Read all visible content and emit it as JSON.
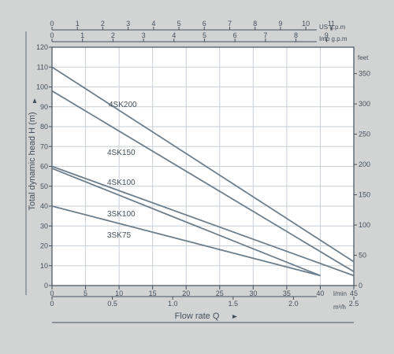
{
  "colors": {
    "page_bg": "#d2d4d3",
    "plot_bg": "#ffffff",
    "ink": "#44505c",
    "grid": "#c8cfd6",
    "series_line": "#6d7f8c"
  },
  "chart_data": {
    "type": "line",
    "title": "",
    "xlabel": "Flow rate Q",
    "ylabel": "Total dynamic head H (m)",
    "x_unit": "l/min",
    "xlim": [
      0,
      45
    ],
    "ylim": [
      0,
      120
    ],
    "grid": true,
    "x_ticks": [
      "0",
      "5",
      "10",
      "15",
      "20",
      "25",
      "30",
      "35",
      "40",
      "45"
    ],
    "y_ticks": [
      "0",
      "10",
      "20",
      "30",
      "40",
      "50",
      "60",
      "70",
      "80",
      "90",
      "100",
      "110",
      "120"
    ],
    "secondary_x_axes": [
      {
        "id": "m3h",
        "unit": "m³/h",
        "ticks": [
          "0",
          "0.5",
          "1.0",
          "1.5",
          "2.0",
          "2.5"
        ],
        "values": [
          0,
          0.5,
          1.0,
          1.5,
          2.0,
          2.5
        ]
      },
      {
        "id": "imp",
        "unit": "Imp g.p.m",
        "ticks": [
          "0",
          "1",
          "2",
          "3",
          "4",
          "5",
          "6",
          "7",
          "8",
          "9"
        ],
        "values": [
          0,
          1,
          2,
          3,
          4,
          5,
          6,
          7,
          8,
          9
        ]
      },
      {
        "id": "us",
        "unit": "US g.p.m",
        "ticks": [
          "0",
          "1",
          "2",
          "3",
          "4",
          "5",
          "6",
          "7",
          "8",
          "9",
          "10",
          "11"
        ],
        "values": [
          0,
          1,
          2,
          3,
          4,
          5,
          6,
          7,
          8,
          9,
          10,
          11
        ]
      }
    ],
    "secondary_y_axis": {
      "unit": "feet",
      "ticks": [
        "0",
        "50",
        "100",
        "150",
        "200",
        "250",
        "300",
        "350"
      ],
      "values": [
        0,
        50,
        100,
        150,
        200,
        250,
        300,
        350
      ]
    },
    "series": [
      {
        "name": "4SK200",
        "x": [
          0,
          45
        ],
        "y": [
          110,
          12
        ]
      },
      {
        "name": "4SK150",
        "x": [
          0,
          45
        ],
        "y": [
          98,
          7
        ]
      },
      {
        "name": "4SK100",
        "x": [
          0,
          45
        ],
        "y": [
          60,
          5
        ]
      },
      {
        "name": "3SK100",
        "x": [
          0,
          40
        ],
        "y": [
          59,
          5
        ]
      },
      {
        "name": "3SK75",
        "x": [
          0,
          40
        ],
        "y": [
          40,
          5
        ]
      }
    ]
  }
}
